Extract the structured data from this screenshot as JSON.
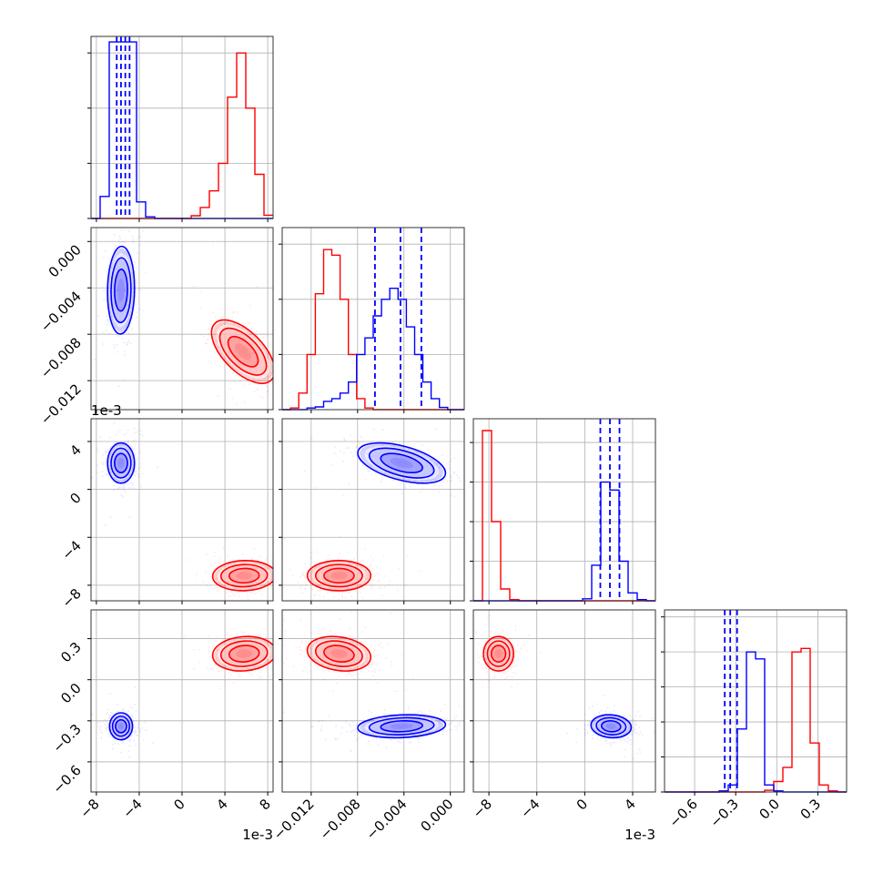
{
  "chart_data": {
    "type": "corner",
    "grid": true,
    "series": [
      {
        "name": "",
        "color": "#ff0000"
      },
      {
        "name": "",
        "color": "#0000ff"
      }
    ],
    "parameters": [
      {
        "range": [
          -0.0085,
          0.0085
        ],
        "ticks": [
          -0.008,
          -0.004,
          0,
          0.004,
          0.008
        ],
        "tick_labels": [
          "−8",
          "−4",
          "0",
          "4",
          "8"
        ],
        "offset_label": "1e-3"
      },
      {
        "range": [
          -0.0145,
          0.0012
        ],
        "ticks": [
          -0.012,
          -0.008,
          -0.004,
          0.0
        ],
        "tick_labels": [
          "−0.012",
          "−0.008",
          "−0.004",
          "0.000"
        ],
        "offset_label": ""
      },
      {
        "range": [
          -0.0093,
          0.0059
        ],
        "ticks": [
          -0.008,
          -0.004,
          0,
          0.004
        ],
        "tick_labels": [
          "−8",
          "−4",
          "0",
          "4"
        ],
        "offset_label": "1e-3"
      },
      {
        "range": [
          -0.82,
          0.51
        ],
        "ticks": [
          -0.6,
          -0.3,
          0.0,
          0.3
        ],
        "tick_labels": [
          "−0.6",
          "−0.3",
          "0.0",
          "0.3"
        ],
        "offset_label": ""
      }
    ],
    "histograms": [
      {
        "param": 0,
        "bins": [
          -0.0085,
          0.0085,
          20
        ],
        "ylim": [
          0,
          0.33
        ],
        "yticks": [
          0,
          0.1,
          0.2,
          0.3
        ],
        "counts": {
          "red": [
            0,
            0,
            0,
            0,
            0,
            0,
            0,
            0,
            0,
            0,
            0,
            0.005,
            0.02,
            0.05,
            0.1,
            0.22,
            0.3,
            0.2,
            0.08,
            0.006
          ],
          "blue": [
            0,
            0.04,
            0.32,
            0.32,
            0.32,
            0.03,
            0.003,
            0,
            0,
            0,
            0,
            0,
            0,
            0,
            0,
            0,
            0,
            0,
            0,
            0
          ]
        },
        "quantiles": [
          -0.0061,
          -0.0057,
          -0.0053,
          -0.0049
        ]
      },
      {
        "param": 1,
        "bins": [
          -0.0145,
          0.0012,
          22
        ],
        "ylim": [
          0,
          0.33
        ],
        "yticks": [
          0,
          0.1,
          0.2,
          0.3
        ],
        "counts": {
          "red": [
            0,
            0.003,
            0.03,
            0.1,
            0.21,
            0.29,
            0.28,
            0.2,
            0.1,
            0.02,
            0.003,
            0,
            0,
            0,
            0,
            0,
            0,
            0,
            0,
            0,
            0,
            0
          ],
          "blue": [
            0,
            0,
            0,
            0.003,
            0.005,
            0.015,
            0.02,
            0.03,
            0.05,
            0.1,
            0.13,
            0.17,
            0.2,
            0.22,
            0.2,
            0.15,
            0.1,
            0.05,
            0.02,
            0.004,
            0,
            0
          ]
        },
        "quantiles": [
          -0.0065,
          -0.0043,
          -0.0025
        ]
      },
      {
        "param": 2,
        "bins": [
          -0.0093,
          0.0059,
          20
        ],
        "ylim": [
          0,
          0.46
        ],
        "yticks": [
          0,
          0.1,
          0.2,
          0.3,
          0.4
        ],
        "counts": {
          "red": [
            0,
            0.43,
            0.2,
            0.03,
            0.003,
            0,
            0,
            0,
            0,
            0,
            0,
            0,
            0,
            0,
            0,
            0,
            0,
            0,
            0,
            0
          ],
          "blue": [
            0,
            0,
            0,
            0,
            0,
            0,
            0,
            0,
            0,
            0,
            0,
            0,
            0.005,
            0.09,
            0.3,
            0.28,
            0.1,
            0.02,
            0.003,
            0
          ]
        },
        "quantiles": [
          0.0013,
          0.0021,
          0.0029
        ]
      },
      {
        "param": 3,
        "bins": [
          -0.82,
          0.51,
          20
        ],
        "ylim": [
          0,
          0.52
        ],
        "yticks": [
          0,
          0.1,
          0.2,
          0.3,
          0.4,
          0.5
        ],
        "counts": {
          "red": [
            0,
            0,
            0,
            0,
            0,
            0,
            0,
            0,
            0,
            0,
            0,
            0.005,
            0.03,
            0.07,
            0.4,
            0.41,
            0.14,
            0.02,
            0.003,
            0
          ],
          "blue": [
            0,
            0,
            0,
            0,
            0,
            0,
            0.003,
            0.02,
            0.18,
            0.4,
            0.38,
            0.02,
            0.003,
            0,
            0,
            0,
            0,
            0,
            0,
            0
          ]
        },
        "quantiles": [
          -0.38,
          -0.34,
          -0.29
        ]
      }
    ],
    "scatter_2d": [
      {
        "x_param": 0,
        "y_param": 1,
        "red": {
          "mean": [
            0.0057,
            -0.0095
          ],
          "sd": [
            0.0014,
            0.0013
          ],
          "corr": -0.6
        },
        "blue": {
          "mean": [
            -0.0057,
            -0.0042
          ],
          "sd": [
            0.0006,
            0.0018
          ],
          "corr": 0.05
        }
      },
      {
        "x_param": 0,
        "y_param": 2,
        "red": {
          "mean": [
            0.0058,
            -0.0072
          ],
          "sd": [
            0.0014,
            0.0006
          ],
          "corr": 0.05
        },
        "blue": {
          "mean": [
            -0.0057,
            0.0022
          ],
          "sd": [
            0.0006,
            0.0008
          ],
          "corr": 0.0
        }
      },
      {
        "x_param": 1,
        "y_param": 2,
        "red": {
          "mean": [
            -0.0096,
            -0.0072
          ],
          "sd": [
            0.0013,
            0.0006
          ],
          "corr": 0.0
        },
        "blue": {
          "mean": [
            -0.0042,
            0.0022
          ],
          "sd": [
            0.0018,
            0.0008
          ],
          "corr": -0.5
        }
      },
      {
        "x_param": 0,
        "y_param": 3,
        "red": {
          "mean": [
            0.0058,
            0.19
          ],
          "sd": [
            0.0014,
            0.06
          ],
          "corr": 0.1
        },
        "blue": {
          "mean": [
            -0.0057,
            -0.34
          ],
          "sd": [
            0.0006,
            0.04
          ],
          "corr": 0.0
        }
      },
      {
        "x_param": 1,
        "y_param": 3,
        "red": {
          "mean": [
            -0.0096,
            0.19
          ],
          "sd": [
            0.0013,
            0.06
          ],
          "corr": -0.2
        },
        "blue": {
          "mean": [
            -0.0042,
            -0.34
          ],
          "sd": [
            0.0018,
            0.04
          ],
          "corr": 0.15
        }
      },
      {
        "x_param": 2,
        "y_param": 3,
        "red": {
          "mean": [
            -0.0072,
            0.19
          ],
          "sd": [
            0.0006,
            0.06
          ],
          "corr": 0.0
        },
        "blue": {
          "mean": [
            0.0022,
            -0.34
          ],
          "sd": [
            0.0008,
            0.04
          ],
          "corr": -0.1
        }
      }
    ]
  }
}
